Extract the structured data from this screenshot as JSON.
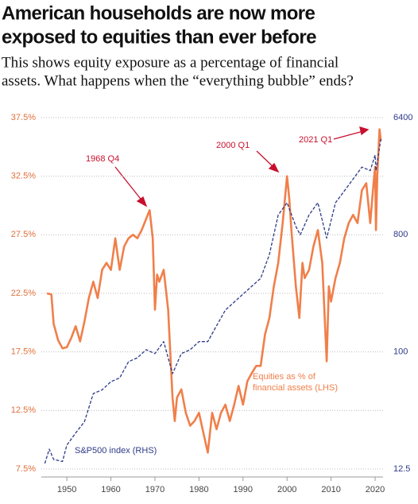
{
  "chart_data": {
    "type": "line",
    "title": [
      "American households are now more",
      "exposed to equities than ever before"
    ],
    "subtitle": [
      "This shows equity exposure as a percentage of financial",
      "assets. What happens when the “everything bubble” ends?"
    ],
    "xlim": [
      1944.2,
      2021.8
    ],
    "xticks": [
      1950,
      1960,
      1970,
      1980,
      1990,
      2000,
      2010,
      2020
    ],
    "ylim": [
      7.5,
      37.5
    ],
    "yticks": [
      {
        "value": 7.5,
        "label": "7.5%"
      },
      {
        "value": 12.5,
        "label": "12.5%"
      },
      {
        "value": 17.5,
        "label": "17.5%"
      },
      {
        "value": 22.5,
        "label": "22.5%"
      },
      {
        "value": 27.5,
        "label": "27.5%"
      },
      {
        "value": 32.5,
        "label": "32.5%"
      },
      {
        "value": 37.5,
        "label": "37.5%"
      }
    ],
    "y2lim": [
      12.5,
      6400
    ],
    "y2scale": "log",
    "y2ticks": [
      12.5,
      100,
      800,
      6400
    ],
    "grid": true,
    "annotations": [
      "1968 Q4",
      "2000 Q1",
      "2021 Q1"
    ],
    "series": [
      {
        "name": [
          "Equities as % of",
          "financial assets (LHS)"
        ],
        "color": "#f07f4a",
        "dash": false,
        "x": [
          1945.5,
          1946.5,
          1947,
          1948,
          1949,
          1950,
          1951,
          1952,
          1953,
          1954,
          1955,
          1956,
          1957,
          1958,
          1959,
          1960,
          1961,
          1962,
          1963,
          1964,
          1965,
          1966,
          1967,
          1968.8,
          1969.5,
          1970,
          1970.5,
          1971,
          1972,
          1973,
          1974,
          1974.5,
          1975,
          1976,
          1977,
          1978,
          1979,
          1980,
          1981,
          1982,
          1983,
          1984,
          1985,
          1986,
          1987,
          1988,
          1989,
          1990,
          1991,
          1992,
          1993,
          1994,
          1995,
          1996,
          1997,
          1998,
          1999,
          2000,
          2000.5,
          2001,
          2002,
          2002.8,
          2003.5,
          2004,
          2005,
          2006,
          2007,
          2008,
          2009,
          2009.5,
          2010,
          2011,
          2012,
          2013,
          2014,
          2015,
          2016,
          2017,
          2018,
          2018.9,
          2019.5,
          2020,
          2020.2,
          2020.5,
          2021,
          2021.3
        ],
        "values": [
          22.5,
          22.4,
          19.9,
          18.5,
          17.8,
          17.9,
          18.7,
          19.7,
          18.4,
          20.1,
          22.1,
          23.5,
          22.1,
          24.5,
          25.1,
          24.5,
          27.2,
          24.5,
          26.5,
          27.2,
          27.5,
          27.2,
          27.9,
          29.6,
          27.2,
          21.1,
          24.1,
          23.5,
          24.5,
          21.1,
          13.6,
          11.6,
          13.6,
          14.3,
          12.3,
          11.2,
          11.6,
          12.3,
          10.6,
          8.9,
          12.3,
          10.9,
          12.3,
          13.0,
          11.6,
          13.0,
          14.6,
          13.0,
          15.0,
          15.7,
          16.3,
          16.3,
          19.0,
          20.4,
          23.1,
          25.1,
          28.5,
          32.5,
          30.6,
          27.9,
          23.1,
          20.4,
          25.1,
          23.8,
          24.5,
          26.5,
          27.9,
          25.1,
          16.7,
          23.1,
          21.8,
          23.8,
          25.1,
          27.2,
          28.5,
          29.2,
          28.5,
          31.3,
          31.9,
          28.5,
          31.3,
          33.3,
          27.9,
          32.6,
          36.5,
          35.5
        ]
      },
      {
        "name": "S&P500 index (RHS)",
        "color": "#2e3a87",
        "dash": true,
        "axis": "y2",
        "x": [
          1945,
          1946,
          1947,
          1949,
          1950,
          1952,
          1954,
          1956,
          1958,
          1960,
          1962,
          1964,
          1966,
          1968,
          1970,
          1972,
          1974,
          1976,
          1978,
          1980,
          1982,
          1984,
          1986,
          1988,
          1990,
          1992,
          1994,
          1996,
          1998,
          2000,
          2002,
          2003,
          2005,
          2007,
          2009,
          2011,
          2013,
          2015,
          2017,
          2018.9,
          2020,
          2020.2,
          2021.3
        ],
        "values": [
          13.8,
          17.8,
          14.8,
          14.3,
          19.1,
          23.7,
          29,
          47.7,
          51,
          59,
          63,
          84,
          90,
          104,
          97,
          120,
          68,
          97,
          104,
          120,
          120,
          159,
          210,
          242,
          279,
          321,
          369,
          563,
          1138,
          1413,
          928,
          800,
          1138,
          1413,
          753,
          1413,
          1740,
          2150,
          2660,
          2500,
          3290,
          2500,
          4380
        ]
      }
    ]
  }
}
